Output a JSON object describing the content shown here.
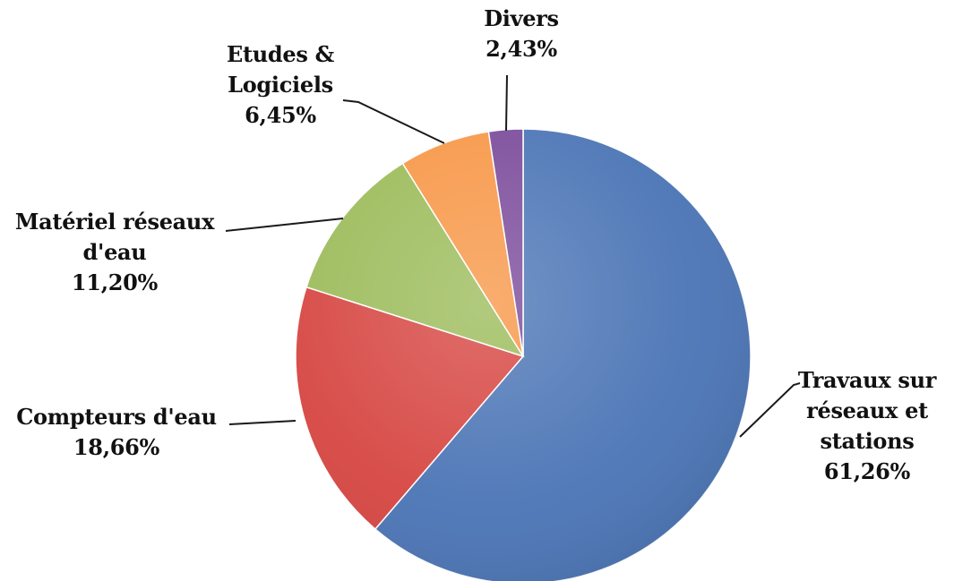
{
  "chart_data": {
    "type": "pie",
    "title": "",
    "start_angle_deg": 0,
    "direction": "clockwise",
    "slices": [
      {
        "name": "Travaux sur réseaux et stations",
        "value": 61.26,
        "color": "#4a74b5",
        "label_lines": [
          "Travaux sur",
          "réseaux et",
          "stations",
          "61,26%"
        ]
      },
      {
        "name": "Compteurs d'eau",
        "value": 18.66,
        "color": "#d64541",
        "label_lines": [
          "Compteurs d'eau",
          "18,66%"
        ]
      },
      {
        "name": "Matériel réseaux d'eau",
        "value": 11.2,
        "color": "#9bbb59",
        "label_lines": [
          "Matériel réseaux",
          "d'eau",
          "11,20%"
        ]
      },
      {
        "name": "Etudes & Logiciels",
        "value": 6.45,
        "color": "#f79646",
        "label_lines": [
          "Etudes &",
          "Logiciels",
          "6,45%"
        ]
      },
      {
        "name": "Divers",
        "value": 2.43,
        "color": "#7a4a9a",
        "label_lines": [
          "Divers",
          "2,43%"
        ]
      }
    ]
  }
}
